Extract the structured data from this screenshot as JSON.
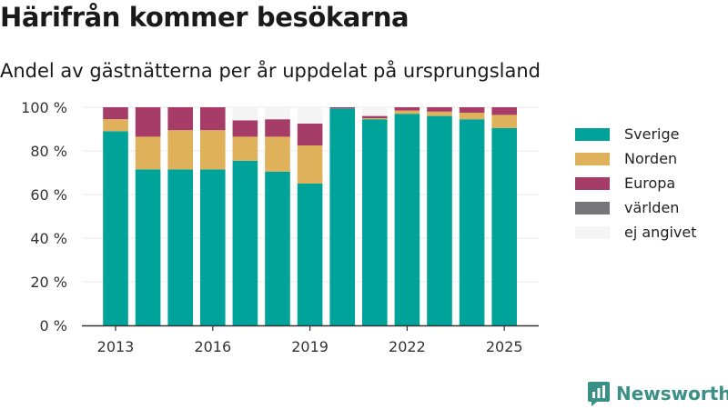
{
  "title": "Härifrån kommer besökarna",
  "subtitle": "Andel av gästnätterna per år uppdelat på ursprungsland",
  "brand": {
    "name": "Newsworthy",
    "icon": "newsworthy-logo-icon"
  },
  "colors": {
    "Sverige": "#00a39a",
    "Norden": "#dfb15a",
    "Europa": "#a63d68",
    "världen": "#75757a",
    "ej angivet": "#f4f4f4",
    "axis": "#333333",
    "grid": "#e9e9e9",
    "brand": "#3a8f86"
  },
  "legend": [
    "Sverige",
    "Norden",
    "Europa",
    "världen",
    "ej angivet"
  ],
  "chart_data": {
    "type": "bar",
    "stacked": true,
    "categories": [
      "2013",
      "2014",
      "2015",
      "2016",
      "2017",
      "2018",
      "2019",
      "2020",
      "2021",
      "2022",
      "2023",
      "2024",
      "2025"
    ],
    "series": [
      {
        "name": "Sverige",
        "values": [
          89,
          71.5,
          71.5,
          71.5,
          75.5,
          70.5,
          65,
          99.5,
          94.5,
          97,
          96,
          94.5,
          90.5
        ]
      },
      {
        "name": "Norden",
        "values": [
          5.5,
          15,
          18,
          18,
          11,
          16,
          17.5,
          0,
          0.5,
          1.5,
          2,
          3,
          6
        ]
      },
      {
        "name": "Europa",
        "values": [
          5.5,
          13.5,
          10.5,
          10.5,
          7.5,
          8,
          10,
          0.5,
          1,
          1.5,
          2,
          2.5,
          3.5
        ]
      },
      {
        "name": "världen",
        "values": [
          0,
          0,
          0,
          0,
          0,
          0,
          0,
          0,
          0,
          0,
          0,
          0,
          0
        ]
      },
      {
        "name": "ej angivet",
        "values": [
          0,
          0,
          0,
          0,
          6,
          5.5,
          7.5,
          0,
          4,
          0,
          0,
          0,
          0
        ]
      }
    ],
    "ylim": [
      0,
      100
    ],
    "yticks": [
      "0 %",
      "20 %",
      "40 %",
      "60 %",
      "80 %",
      "100 %"
    ],
    "xticks": [
      "2013",
      "2016",
      "2019",
      "2022",
      "2025"
    ],
    "grid": true,
    "legend_position": "right",
    "xlabel": "",
    "ylabel": ""
  }
}
